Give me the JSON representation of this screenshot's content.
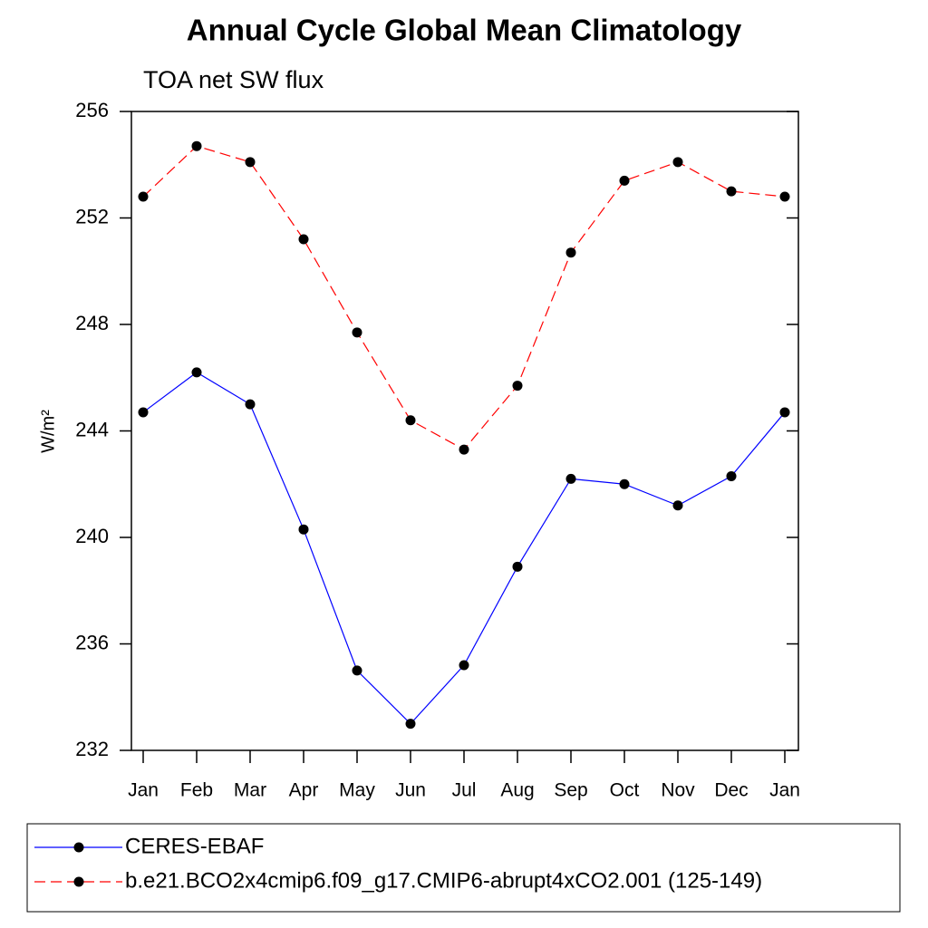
{
  "chart_data": {
    "type": "line",
    "title": "Annual Cycle Global Mean Climatology",
    "subtitle": "TOA net SW flux",
    "ylabel": "W/m²",
    "categories": [
      "Jan",
      "Feb",
      "Mar",
      "Apr",
      "May",
      "Jun",
      "Jul",
      "Aug",
      "Sep",
      "Oct",
      "Nov",
      "Dec",
      "Jan"
    ],
    "ylim": [
      232,
      256
    ],
    "yticks": [
      232,
      236,
      240,
      244,
      248,
      252,
      256
    ],
    "series": [
      {
        "name": "CERES-EBAF",
        "color": "#0000ff",
        "dash": false,
        "values": [
          244.7,
          246.2,
          245.0,
          240.3,
          235.0,
          233.0,
          235.2,
          238.9,
          242.2,
          242.0,
          241.2,
          242.3,
          244.7
        ]
      },
      {
        "name": "b.e21.BCO2x4cmip6.f09_g17.CMIP6-abrupt4xCO2.001 (125-149)",
        "color": "#ff0000",
        "dash": true,
        "values": [
          252.8,
          254.7,
          254.1,
          251.2,
          247.7,
          244.4,
          243.3,
          245.7,
          250.7,
          253.4,
          254.1,
          253.0,
          252.8
        ]
      }
    ]
  }
}
